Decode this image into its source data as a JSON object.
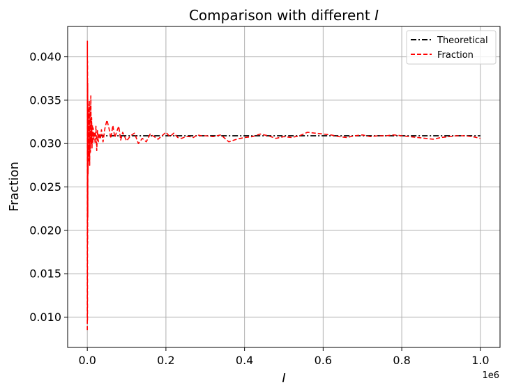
{
  "chart_data": {
    "type": "line",
    "title": "Comparison with different",
    "title_symbol": "I",
    "xlabel": "I",
    "ylabel": "Fraction",
    "x_offset_label": "1e6",
    "xlim": [
      -50000,
      1050000
    ],
    "ylim": [
      0.0065,
      0.0435
    ],
    "x_ticks": [
      0.0,
      0.2,
      0.4,
      0.6,
      0.8,
      1.0
    ],
    "x_tick_labels": [
      "0.0",
      "0.2",
      "0.4",
      "0.6",
      "0.8",
      "1.0"
    ],
    "y_ticks": [
      0.01,
      0.015,
      0.02,
      0.025,
      0.03,
      0.035,
      0.04
    ],
    "y_tick_labels": [
      "0.010",
      "0.015",
      "0.020",
      "0.025",
      "0.030",
      "0.035",
      "0.040"
    ],
    "grid": true,
    "legend_position": "top-right",
    "series": [
      {
        "name": "Theoretical",
        "color": "#000000",
        "style": "dash-dot",
        "x": [
          0,
          1000000
        ],
        "y": [
          0.0309,
          0.0309
        ]
      },
      {
        "name": "Fraction",
        "color": "#ff0000",
        "style": "dashed",
        "x": [
          0,
          200,
          400,
          600,
          800,
          1000,
          1300,
          1600,
          2000,
          2500,
          3000,
          3500,
          4000,
          5000,
          6000,
          7000,
          8000,
          9000,
          10000,
          11000,
          12000,
          13000,
          14000,
          15000,
          16000,
          18000,
          20000,
          22000,
          24000,
          26000,
          28000,
          30000,
          33000,
          36000,
          40000,
          45000,
          50000,
          55000,
          60000,
          65000,
          70000,
          75000,
          80000,
          85000,
          90000,
          100000,
          110000,
          120000,
          130000,
          140000,
          150000,
          160000,
          170000,
          180000,
          190000,
          200000,
          210000,
          220000,
          230000,
          240000,
          250000,
          260000,
          270000,
          280000,
          290000,
          300000,
          320000,
          340000,
          360000,
          380000,
          400000,
          420000,
          440000,
          460000,
          480000,
          500000,
          520000,
          540000,
          560000,
          580000,
          600000,
          620000,
          640000,
          660000,
          680000,
          700000,
          720000,
          740000,
          760000,
          780000,
          800000,
          820000,
          840000,
          860000,
          880000,
          900000,
          920000,
          940000,
          960000,
          980000,
          1000000
        ],
        "y": [
          0.0085,
          0.0418,
          0.0095,
          0.0395,
          0.0185,
          0.037,
          0.0215,
          0.0345,
          0.0265,
          0.034,
          0.028,
          0.0335,
          0.0285,
          0.035,
          0.0275,
          0.0345,
          0.029,
          0.0355,
          0.03,
          0.033,
          0.0295,
          0.0322,
          0.03,
          0.0318,
          0.0305,
          0.0312,
          0.03,
          0.032,
          0.0292,
          0.0315,
          0.0302,
          0.0312,
          0.0305,
          0.0316,
          0.0302,
          0.0318,
          0.0327,
          0.0318,
          0.0306,
          0.0321,
          0.0307,
          0.0314,
          0.032,
          0.0304,
          0.0313,
          0.0303,
          0.0309,
          0.0312,
          0.03,
          0.0306,
          0.0302,
          0.0311,
          0.0308,
          0.0305,
          0.0309,
          0.0313,
          0.0308,
          0.0312,
          0.0307,
          0.0306,
          0.0308,
          0.0308,
          0.0307,
          0.031,
          0.0309,
          0.0309,
          0.0308,
          0.031,
          0.0302,
          0.0305,
          0.0307,
          0.0308,
          0.0311,
          0.0309,
          0.0306,
          0.0308,
          0.0307,
          0.0309,
          0.0313,
          0.0312,
          0.0311,
          0.031,
          0.0308,
          0.0307,
          0.0309,
          0.031,
          0.0308,
          0.0309,
          0.0309,
          0.031,
          0.0309,
          0.0308,
          0.0307,
          0.0306,
          0.0305,
          0.0307,
          0.0308,
          0.0309,
          0.0309,
          0.0308,
          0.0306
        ]
      }
    ]
  }
}
